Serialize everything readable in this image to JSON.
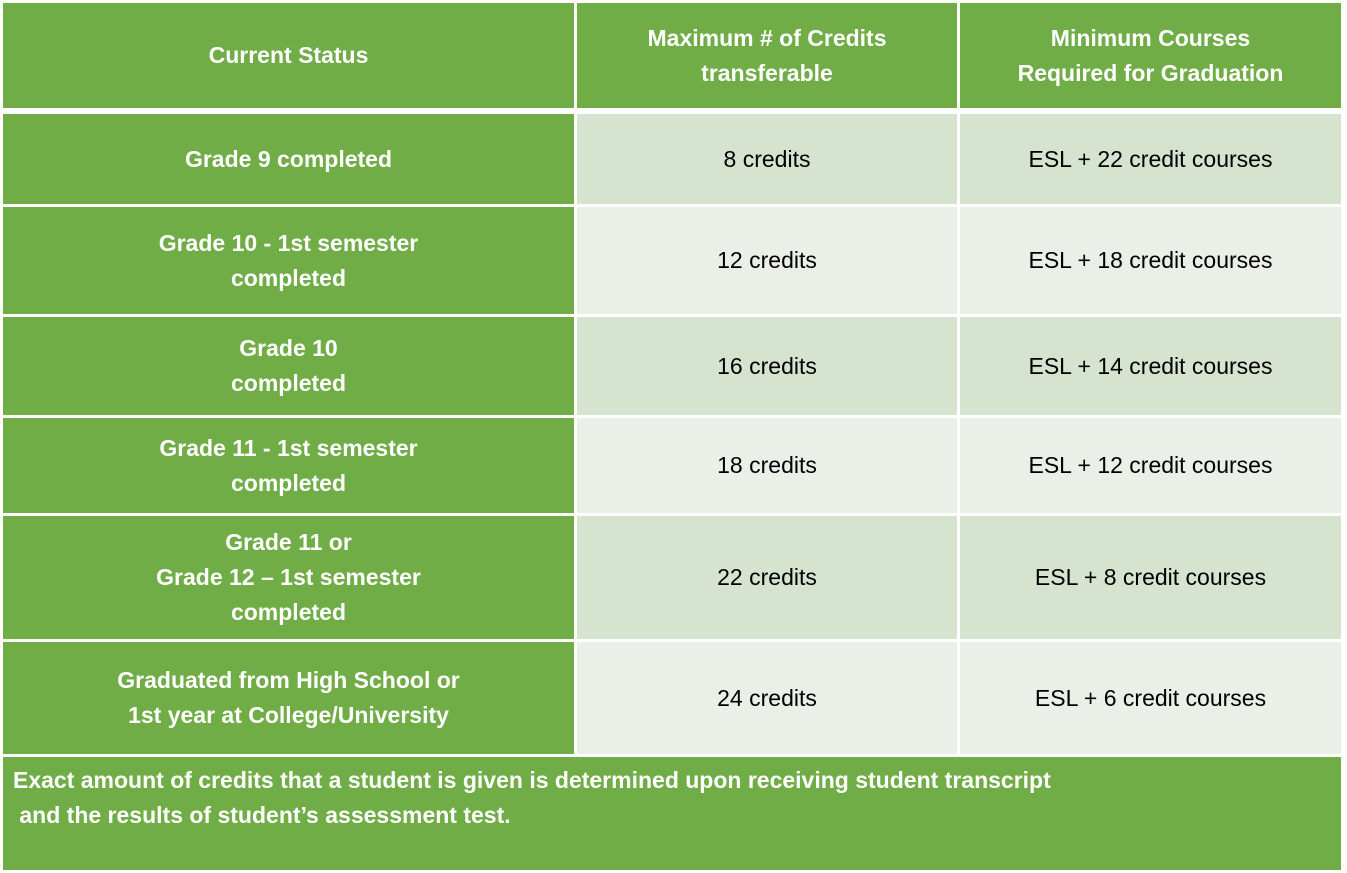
{
  "table": {
    "headers": {
      "status": "Current Status",
      "max_credits": "Maximum # of Credits\ntransferable",
      "min_courses": "Minimum Courses\nRequired for Graduation"
    },
    "rows": [
      {
        "status": "Grade 9 completed",
        "max_credits": "8 credits",
        "min_courses": "ESL + 22 credit courses"
      },
      {
        "status": "Grade 10 - 1st semester\ncompleted",
        "max_credits": "12 credits",
        "min_courses": "ESL + 18 credit courses"
      },
      {
        "status": "Grade 10\ncompleted",
        "max_credits": "16 credits",
        "min_courses": "ESL + 14 credit courses"
      },
      {
        "status": "Grade 11 - 1st semester\ncompleted",
        "max_credits": "18 credits",
        "min_courses": "ESL + 12 credit courses"
      },
      {
        "status": "Grade 11 or\nGrade 12 – 1st semester\ncompleted",
        "max_credits": "22 credits",
        "min_courses": "ESL + 8 credit courses"
      },
      {
        "status": "Graduated from High School  or\n1st year at  College/University",
        "max_credits": "24 credits",
        "min_courses": "ESL + 6 credit courses"
      }
    ],
    "note": {
      "line1": "Exact amount of credits that a student is given is determined upon receiving student transcript",
      "line2": " and the results of student’s assessment test."
    }
  },
  "colors": {
    "header_green": "#70ad47",
    "row_dark": "#d6e3cf",
    "row_light": "#eaefe8",
    "border": "#ffffff"
  }
}
